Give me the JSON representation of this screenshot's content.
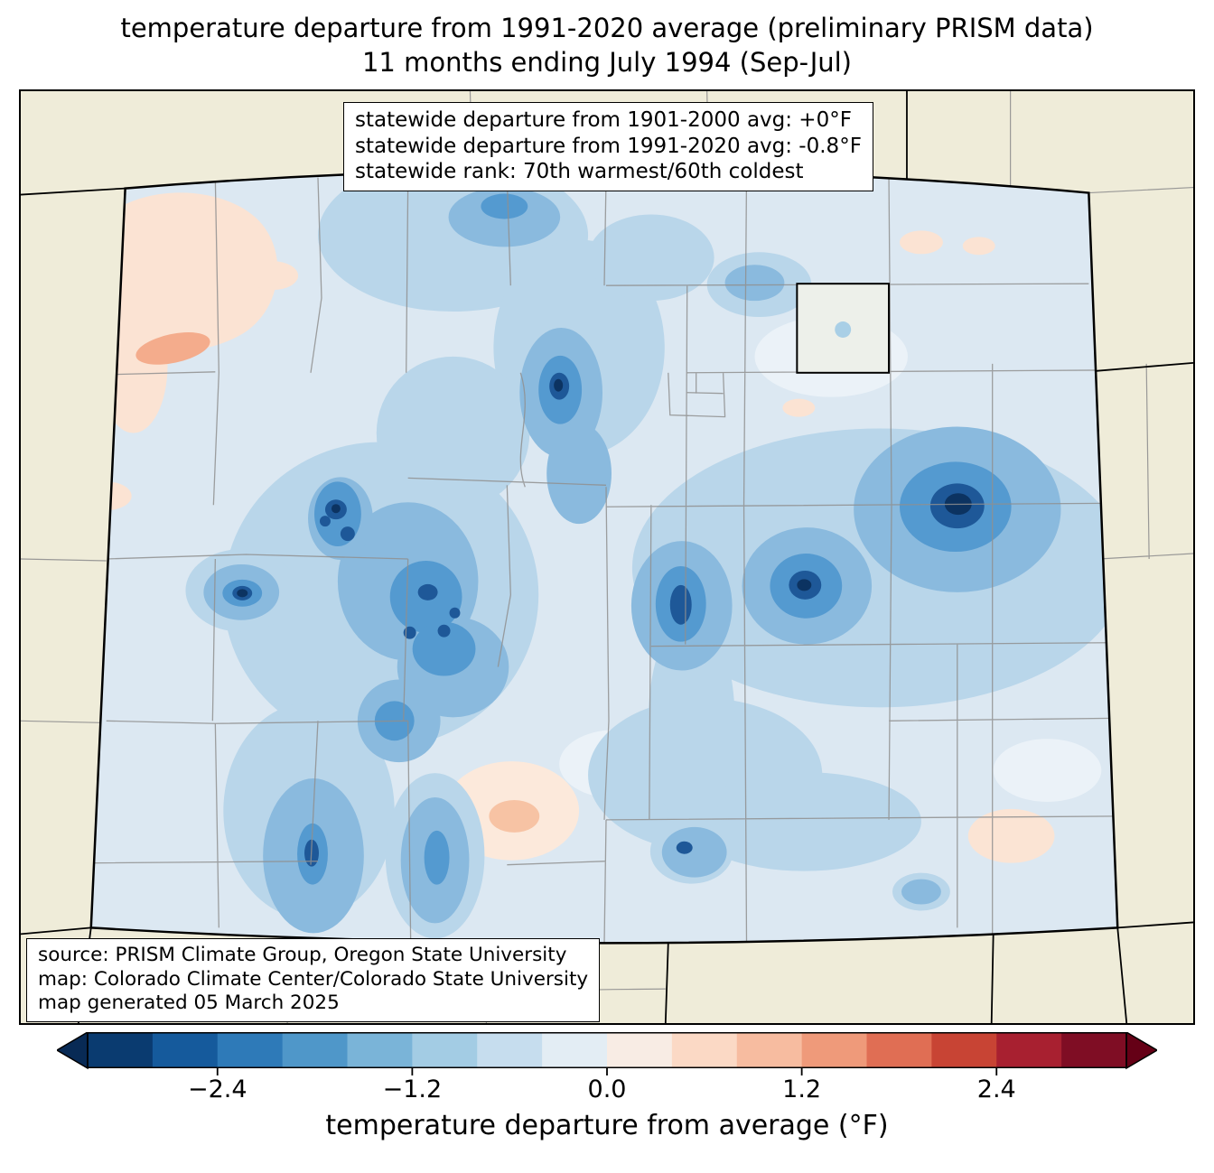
{
  "title": {
    "line1": "temperature departure from 1991-2020 average (preliminary PRISM data)",
    "line2": "11 months ending July 1994 (Sep-Jul)"
  },
  "stats_box": {
    "lines": [
      "statewide departure from 1901-2000 avg: +0°F",
      "statewide departure from 1991-2020 avg: -0.8°F",
      "statewide rank: 70th warmest/60th coldest"
    ]
  },
  "source_box": {
    "lines": [
      "source: PRISM Climate Group, Oregon State University",
      "map: Colorado Climate Center/Colorado State University",
      "map generated 05 March 2025"
    ]
  },
  "colorbar": {
    "label": "temperature departure from average (°F)",
    "range": [
      -3.2,
      3.2
    ],
    "ticks": [
      {
        "label": "−2.4",
        "value": -2.4
      },
      {
        "label": "−1.2",
        "value": -1.2
      },
      {
        "label": "0.0",
        "value": 0.0
      },
      {
        "label": "1.2",
        "value": 1.2
      },
      {
        "label": "2.4",
        "value": 2.4
      }
    ],
    "segment_colors": [
      "#0a3b70",
      "#155a9c",
      "#2e7ab8",
      "#4f97c9",
      "#7ab4d8",
      "#a3cce4",
      "#c6ddee",
      "#e3edf4",
      "#f8ece4",
      "#fbd9c5",
      "#f7bca0",
      "#ef9a7a",
      "#e06e54",
      "#c84434",
      "#a82030",
      "#7f0d24"
    ],
    "under_arrow_color": "#082a55",
    "over_arrow_color": "#650016"
  },
  "map_colors": {
    "land": "#efecd9",
    "base_cool": "#dce8f2",
    "cool_light": "#b9d6ea",
    "cool_medium": "#8abade",
    "cool_dark": "#549ad0",
    "cool_navy": "#1e5898",
    "cool_darkest": "#0c3361",
    "warm_pale": "#fbe3d3",
    "warm_core": "#f4ac8c"
  }
}
